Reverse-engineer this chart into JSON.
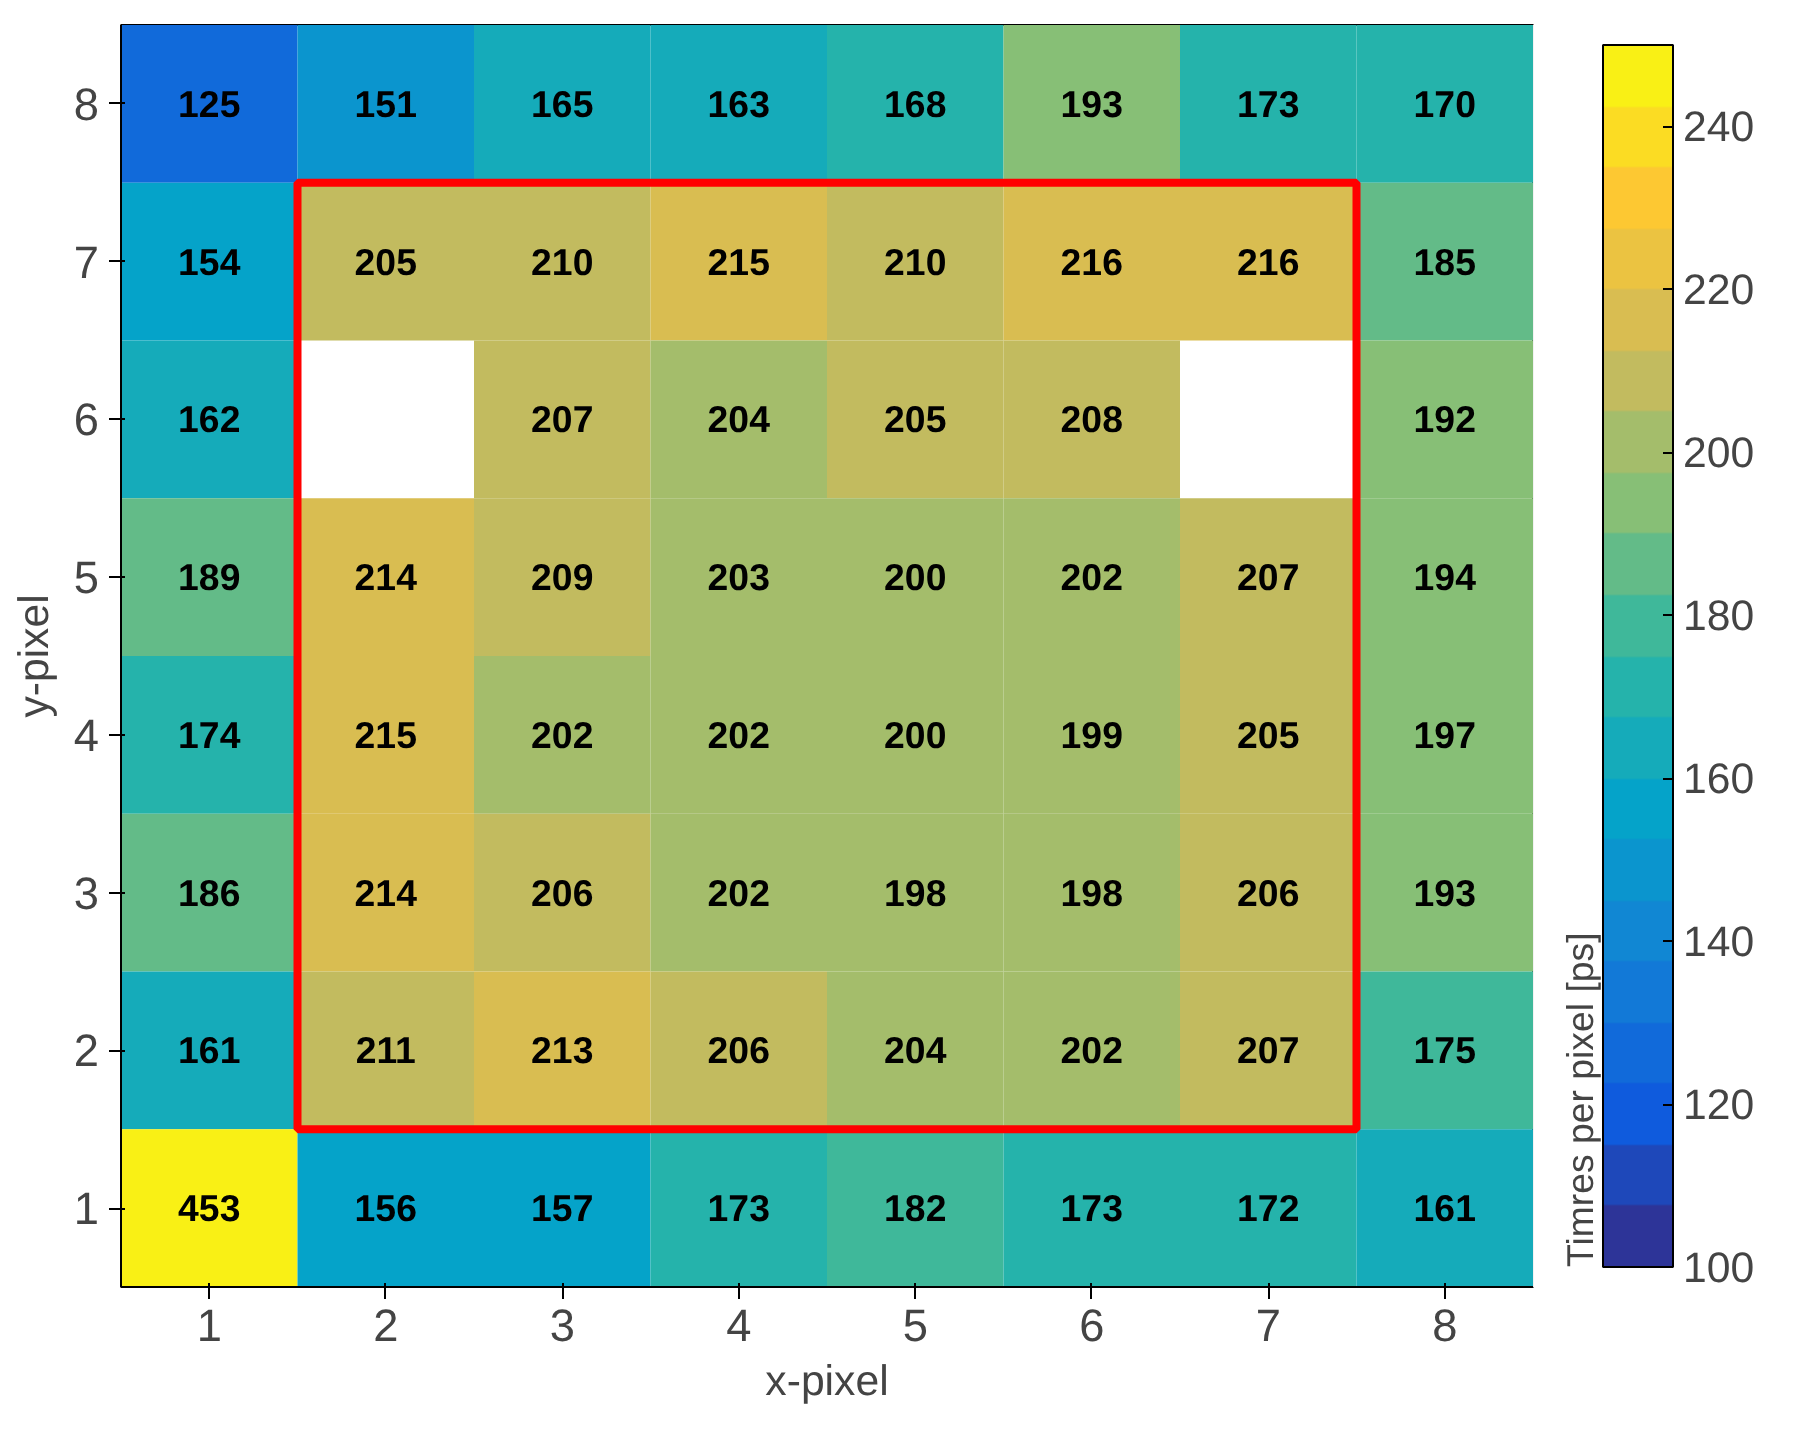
{
  "chart_data": {
    "type": "heatmap",
    "xlabel": "x-pixel",
    "ylabel": "y-pixel",
    "clabel": "Timres per pixel  [ps]",
    "categories": [
      "1",
      "2",
      "3",
      "4",
      "5",
      "6",
      "7",
      "8"
    ],
    "y_categories": [
      "8",
      "7",
      "6",
      "5",
      "4",
      "3",
      "2",
      "1"
    ],
    "cells": [
      [
        125,
        151,
        165,
        163,
        168,
        193,
        173,
        170
      ],
      [
        154,
        205,
        210,
        215,
        210,
        216,
        216,
        185
      ],
      [
        162,
        null,
        207,
        204,
        205,
        208,
        null,
        192
      ],
      [
        189,
        214,
        209,
        203,
        200,
        202,
        207,
        194
      ],
      [
        174,
        215,
        202,
        202,
        200,
        199,
        205,
        197
      ],
      [
        186,
        214,
        206,
        202,
        198,
        198,
        206,
        193
      ],
      [
        161,
        211,
        213,
        206,
        204,
        202,
        207,
        175
      ],
      [
        453,
        156,
        157,
        173,
        182,
        173,
        172,
        161
      ]
    ],
    "data_labels": true,
    "clim": [
      100,
      250
    ],
    "cticks": [
      100,
      120,
      140,
      160,
      180,
      200,
      220,
      240
    ]
  }
}
